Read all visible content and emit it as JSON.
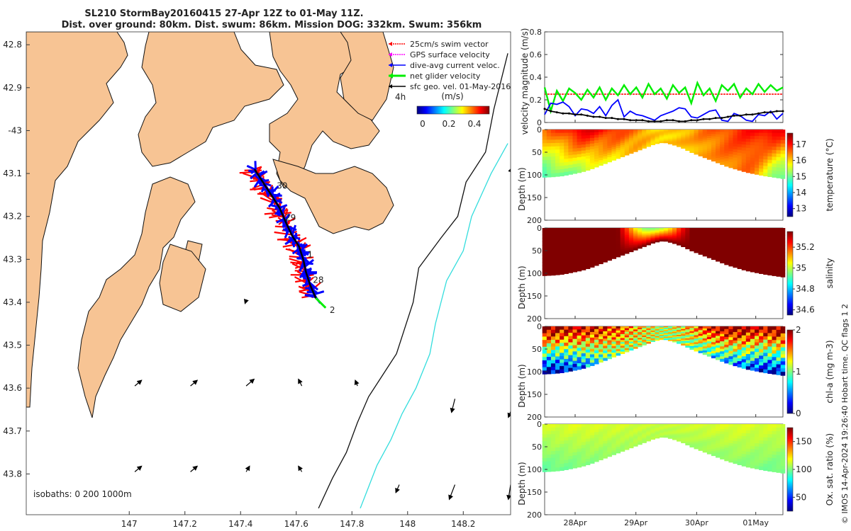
{
  "title": {
    "line1": "SL210 StormBay20160415 27-Apr 12Z to 01-May 11Z.",
    "line2": "Dist. over ground: 80km. Dist. swum: 86km. Mission DOG: 332km. Swum: 356km"
  },
  "credit": "© IMOS 14-Apr-2024 19:26:40 Hobart time. QC flags 1  2",
  "colors": {
    "land": "#f7c494",
    "sea": "#ffffff",
    "coast": "#111111",
    "isobath_200": "#111111",
    "isobath_1000": "#33dddd",
    "track_black": "#000000",
    "swim_red": "#ff0000",
    "dive_blue": "#0000ff",
    "net_green": "#00ee00",
    "gps_magenta": "#ff00ff"
  },
  "chart_data": [
    {
      "type": "scatter",
      "name": "track-map",
      "xlabel": "longitude",
      "ylabel": "latitude",
      "xlim": [
        146.63,
        148.37
      ],
      "ylim": [
        -43.895,
        -42.77
      ],
      "xticks": [
        {
          "value": 147,
          "label": "147"
        },
        {
          "value": 147.2,
          "label": "147.2"
        },
        {
          "value": 147.4,
          "label": "147.4"
        },
        {
          "value": 147.6,
          "label": "147.6"
        },
        {
          "value": 147.8,
          "label": "147.8"
        },
        {
          "value": 148,
          "label": "148"
        },
        {
          "value": 148.2,
          "label": "148.2"
        }
      ],
      "yticks": [
        {
          "value": -42.8,
          "label": "42.8"
        },
        {
          "value": -42.9,
          "label": "42.9"
        },
        {
          "value": -43.0,
          "label": "-43"
        },
        {
          "value": -43.1,
          "label": "43.1"
        },
        {
          "value": -43.2,
          "label": "43.2"
        },
        {
          "value": -43.3,
          "label": "43.3"
        },
        {
          "value": -43.4,
          "label": "43.4"
        },
        {
          "value": -43.5,
          "label": "43.5"
        },
        {
          "value": -43.6,
          "label": "43.6"
        },
        {
          "value": -43.7,
          "label": "43.7"
        },
        {
          "value": -43.8,
          "label": "43.8"
        }
      ],
      "track": [
        [
          147.45,
          -43.09
        ],
        [
          147.48,
          -43.12
        ],
        [
          147.51,
          -43.15
        ],
        [
          147.54,
          -43.18
        ],
        [
          147.56,
          -43.21
        ],
        [
          147.585,
          -43.245
        ],
        [
          147.61,
          -43.27
        ],
        [
          147.625,
          -43.3
        ],
        [
          147.635,
          -43.33
        ],
        [
          147.65,
          -43.36
        ],
        [
          147.67,
          -43.39
        ]
      ],
      "day_labels": [
        {
          "label": "30",
          "lon": 147.53,
          "lat": -43.135
        },
        {
          "label": "29",
          "lon": 147.56,
          "lat": -43.21
        },
        {
          "label": "1",
          "lon": 147.64,
          "lat": -43.295
        },
        {
          "label": "28",
          "lon": 147.66,
          "lat": -43.355
        },
        {
          "label": "2",
          "lon": 147.72,
          "lat": -43.425
        }
      ],
      "sfc_vectors": [
        {
          "lon": 147.02,
          "lat": -43.595,
          "u": 0.06,
          "v": 0.05
        },
        {
          "lon": 147.22,
          "lat": -43.595,
          "u": 0.06,
          "v": 0.05
        },
        {
          "lon": 147.42,
          "lat": -43.595,
          "u": 0.07,
          "v": 0.06
        },
        {
          "lon": 147.62,
          "lat": -43.595,
          "u": -0.03,
          "v": 0.06
        },
        {
          "lon": 147.82,
          "lat": -43.595,
          "u": -0.02,
          "v": 0.05
        },
        {
          "lon": 148.17,
          "lat": -43.625,
          "u": -0.03,
          "v": -0.12
        },
        {
          "lon": 148.37,
          "lat": -43.655,
          "u": -0.02,
          "v": -0.05
        },
        {
          "lon": 147.02,
          "lat": -43.795,
          "u": 0.06,
          "v": 0.05
        },
        {
          "lon": 147.22,
          "lat": -43.795,
          "u": 0.06,
          "v": 0.05
        },
        {
          "lon": 147.42,
          "lat": -43.795,
          "u": 0.03,
          "v": 0.05
        },
        {
          "lon": 147.62,
          "lat": -43.795,
          "u": -0.03,
          "v": 0.05
        },
        {
          "lon": 147.97,
          "lat": -43.825,
          "u": -0.03,
          "v": -0.07
        },
        {
          "lon": 148.17,
          "lat": -43.825,
          "u": -0.05,
          "v": -0.13
        },
        {
          "lon": 148.37,
          "lat": -43.825,
          "u": -0.02,
          "v": -0.13
        },
        {
          "lon": 147.42,
          "lat": -43.395,
          "u": -0.01,
          "v": -0.03
        },
        {
          "lon": 148.37,
          "lat": -43.095,
          "u": 0.01,
          "v": 0.03
        }
      ],
      "isobaths": [
        {
          "name": "200m",
          "points": [
            [
              148.36,
              -42.82
            ],
            [
              148.31,
              -42.95
            ],
            [
              148.28,
              -43.05
            ],
            [
              148.21,
              -43.12
            ],
            [
              148.18,
              -43.2
            ],
            [
              148.12,
              -43.25
            ],
            [
              148.04,
              -43.32
            ],
            [
              148.02,
              -43.4
            ],
            [
              147.99,
              -43.46
            ],
            [
              147.96,
              -43.52
            ],
            [
              147.91,
              -43.57
            ],
            [
              147.86,
              -43.62
            ],
            [
              147.82,
              -43.68
            ],
            [
              147.78,
              -43.75
            ],
            [
              147.73,
              -43.81
            ],
            [
              147.68,
              -43.88
            ]
          ]
        },
        {
          "name": "1000m",
          "points": [
            [
              148.36,
              -43.03
            ],
            [
              148.3,
              -43.1
            ],
            [
              148.23,
              -43.2
            ],
            [
              148.2,
              -43.28
            ],
            [
              148.14,
              -43.35
            ],
            [
              148.1,
              -43.45
            ],
            [
              148.08,
              -43.52
            ],
            [
              148.03,
              -43.6
            ],
            [
              147.98,
              -43.66
            ],
            [
              147.94,
              -43.72
            ],
            [
              147.89,
              -43.78
            ],
            [
              147.86,
              -43.83
            ],
            [
              147.83,
              -43.88
            ]
          ]
        }
      ],
      "colorbar": {
        "title": "(m/s)",
        "ticks": [
          "0",
          "0.2",
          "0.4"
        ],
        "range": [
          0,
          0.45
        ]
      },
      "legend": [
        "25cm/s swim vector",
        "GPS surface velocity",
        "dive-avg current veloc.",
        "net glider velocity",
        "sfc geo. vel. 01-May-2016"
      ],
      "time_step": "4h",
      "isobath_label": "isobaths: 0   200  1000m"
    },
    {
      "type": "line",
      "name": "velocity-timeseries",
      "ylabel": "velocity magnitude (m/s)",
      "ylim": [
        0,
        0.8
      ],
      "yticks": [
        "0",
        "0.2",
        "0.4",
        "0.6",
        "0.8"
      ],
      "xlim": [
        0,
        3.9
      ],
      "series": [
        {
          "name": "25cm/s swim vector",
          "color": "#ff0000",
          "values": [
            0.25,
            0.25,
            0.25,
            0.25,
            0.25,
            0.25,
            0.25,
            0.25,
            0.25,
            0.25,
            0.25,
            0.25,
            0.25,
            0.25,
            0.25,
            0.25,
            0.25,
            0.25,
            0.25,
            0.25,
            0.25,
            0.25,
            0.25,
            0.25,
            0.25,
            0.25,
            0.25,
            0.25,
            0.25,
            0.25,
            0.25,
            0.25,
            0.25,
            0.25,
            0.25,
            0.25,
            0.25,
            0.25,
            0.25,
            0.25
          ]
        },
        {
          "name": "net glider velocity",
          "color": "#00ee00",
          "values": [
            0.31,
            0.1,
            0.28,
            0.19,
            0.3,
            0.26,
            0.2,
            0.29,
            0.22,
            0.31,
            0.2,
            0.3,
            0.24,
            0.33,
            0.25,
            0.31,
            0.22,
            0.34,
            0.25,
            0.3,
            0.21,
            0.33,
            0.26,
            0.31,
            0.17,
            0.35,
            0.24,
            0.3,
            0.19,
            0.33,
            0.28,
            0.34,
            0.22,
            0.3,
            0.25,
            0.34,
            0.27,
            0.33,
            0.28,
            0.31
          ]
        },
        {
          "name": "dive-avg current veloc.",
          "color": "#0000ff",
          "values": [
            0.07,
            0.17,
            0.16,
            0.18,
            0.14,
            0.06,
            0.12,
            0.11,
            0.08,
            0.14,
            0.06,
            0.15,
            0.2,
            0.05,
            0.1,
            0.07,
            0.06,
            0.04,
            0.02,
            0.06,
            0.08,
            0.1,
            0.13,
            0.12,
            0.05,
            0.04,
            0.07,
            0.1,
            0.11,
            0.02,
            0.01,
            0.08,
            0.06,
            0.02,
            0.01,
            0.07,
            0.06,
            0.1,
            0.03,
            0.08
          ]
        },
        {
          "name": "sfc geo. vel.",
          "color": "#000000",
          "values": [
            0.12,
            0.1,
            0.09,
            0.08,
            0.08,
            0.07,
            0.07,
            0.06,
            0.05,
            0.05,
            0.04,
            0.04,
            0.03,
            0.03,
            0.02,
            0.02,
            0.02,
            0.01,
            0.01,
            0.01,
            0.02,
            0.02,
            0.01,
            0.01,
            0.02,
            0.02,
            0.03,
            0.03,
            0.04,
            0.04,
            0.05,
            0.06,
            0.06,
            0.07,
            0.07,
            0.08,
            0.09,
            0.09,
            0.1,
            0.1
          ]
        }
      ]
    },
    {
      "type": "heatmap",
      "name": "temperature-section",
      "ylabel": "Depth (m)",
      "clabel": "temperature (°C)",
      "ylim": [
        0,
        200
      ],
      "yticks": [
        "0",
        "50",
        "100",
        "150",
        "200"
      ],
      "cticks": [
        "13",
        "14",
        "15",
        "16",
        "17"
      ],
      "crange": [
        12.5,
        17.7
      ],
      "profile_depth": [
        105,
        104,
        102,
        98,
        94,
        88,
        80,
        72,
        64,
        56,
        48,
        40,
        32,
        28,
        33,
        40,
        50,
        58,
        66,
        74,
        82,
        88,
        94,
        98,
        102,
        105,
        108
      ],
      "surface_values": [
        16.4,
        16.6,
        16.8,
        17.0,
        17.2,
        17.1,
        17.0,
        16.9,
        16.8,
        16.6,
        16.4,
        16.2,
        16.0,
        15.9,
        16.0,
        16.1,
        16.2,
        16.4,
        16.5,
        16.6,
        16.7,
        16.8,
        16.9,
        17.0,
        17.1,
        17.2,
        17.0
      ],
      "bottom_values": [
        14.8,
        14.9,
        15.0,
        15.2,
        15.3,
        15.5,
        15.6,
        15.8,
        15.9,
        16.0,
        16.1,
        16.1,
        16.0,
        16.0,
        16.0,
        16.1,
        16.1,
        16.2,
        16.2,
        16.3,
        16.4,
        16.4,
        16.5,
        16.3,
        15.8,
        15.2,
        14.9
      ]
    },
    {
      "type": "heatmap",
      "name": "salinity-section",
      "ylabel": "Depth (m)",
      "clabel": "salinity",
      "ylim": [
        0,
        200
      ],
      "yticks": [
        "0",
        "50",
        "100",
        "150",
        "200"
      ],
      "cticks": [
        "34.6",
        "34.8",
        "35",
        "35.2"
      ],
      "crange": [
        34.55,
        35.35
      ],
      "profile_depth": [
        105,
        104,
        102,
        98,
        94,
        88,
        80,
        72,
        64,
        56,
        48,
        40,
        32,
        28,
        33,
        40,
        50,
        58,
        66,
        74,
        82,
        88,
        94,
        98,
        102,
        105,
        108
      ],
      "surface_values": [
        35.35,
        35.35,
        35.35,
        35.35,
        35.35,
        35.35,
        35.35,
        35.35,
        35.35,
        35.2,
        35.05,
        34.95,
        34.95,
        35.0,
        35.1,
        35.25,
        35.35,
        35.35,
        35.35,
        35.35,
        35.35,
        35.35,
        35.35,
        35.35,
        35.35,
        35.35,
        35.35
      ],
      "bottom_values": [
        35.35,
        35.35,
        35.35,
        35.35,
        35.35,
        35.35,
        35.35,
        35.35,
        35.35,
        35.35,
        35.35,
        35.35,
        35.35,
        35.35,
        35.35,
        35.35,
        35.35,
        35.35,
        35.35,
        35.35,
        35.35,
        35.35,
        35.35,
        35.35,
        35.35,
        35.35,
        35.35
      ]
    },
    {
      "type": "heatmap",
      "name": "chla-section",
      "ylabel": "Depth (m)",
      "clabel": "chl-a (mg m-3)",
      "ylim": [
        0,
        200
      ],
      "yticks": [
        "0",
        "50",
        "100",
        "150",
        "200"
      ],
      "cticks": [
        "0",
        "1",
        "2"
      ],
      "crange": [
        0,
        2
      ],
      "profile_depth": [
        105,
        104,
        102,
        98,
        94,
        88,
        80,
        72,
        64,
        56,
        48,
        40,
        32,
        28,
        33,
        40,
        50,
        58,
        66,
        74,
        82,
        88,
        94,
        98,
        102,
        105,
        108
      ],
      "surface_values": [
        2.0,
        2.0,
        1.9,
        1.9,
        1.9,
        1.8,
        1.8,
        1.7,
        1.7,
        1.5,
        1.4,
        1.3,
        1.2,
        1.1,
        1.2,
        1.3,
        1.4,
        1.6,
        1.8,
        1.9,
        2.0,
        2.0,
        2.0,
        1.9,
        1.9,
        2.0,
        2.0
      ],
      "bottom_values": [
        0.1,
        0.1,
        0.2,
        0.3,
        0.4,
        0.6,
        0.8,
        0.9,
        1.0,
        1.1,
        1.1,
        1.2,
        1.2,
        1.1,
        1.1,
        1.1,
        1.0,
        0.9,
        0.8,
        0.7,
        0.6,
        0.5,
        0.4,
        0.3,
        0.2,
        0.2,
        0.2
      ]
    },
    {
      "type": "heatmap",
      "name": "oxygen-section",
      "ylabel": "Depth (m)",
      "clabel": "Ox. sat. ratio (%)",
      "ylim": [
        0,
        200
      ],
      "yticks": [
        "0",
        "50",
        "100",
        "150",
        "200"
      ],
      "cticks": [
        "50",
        "100",
        "150"
      ],
      "crange": [
        25,
        175
      ],
      "profile_depth": [
        105,
        104,
        102,
        98,
        94,
        88,
        80,
        72,
        64,
        56,
        48,
        40,
        32,
        28,
        33,
        40,
        50,
        58,
        66,
        74,
        82,
        88,
        94,
        98,
        102,
        105,
        108
      ],
      "surface_values": [
        112,
        113,
        113,
        114,
        114,
        114,
        113,
        113,
        113,
        112,
        112,
        111,
        111,
        111,
        111,
        112,
        112,
        112,
        113,
        113,
        114,
        114,
        114,
        113,
        113,
        113,
        112
      ],
      "bottom_values": [
        96,
        97,
        98,
        99,
        100,
        101,
        102,
        103,
        104,
        105,
        106,
        107,
        107,
        107,
        106,
        106,
        105,
        104,
        104,
        103,
        102,
        102,
        101,
        100,
        99,
        98,
        98
      ]
    }
  ],
  "time_axis": {
    "ticks": [
      {
        "label": "28Apr",
        "frac": 0.128
      },
      {
        "label": "29Apr",
        "frac": 0.383
      },
      {
        "label": "30Apr",
        "frac": 0.638
      },
      {
        "label": "01May",
        "frac": 0.886
      }
    ]
  }
}
